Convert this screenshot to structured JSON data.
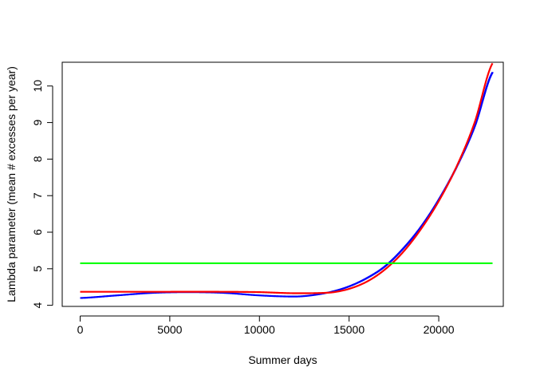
{
  "chart_data": {
    "type": "line",
    "title": "",
    "xlabel": "Summer days",
    "ylabel": "Lambda parameter (mean # excesses per year)",
    "xlim": [
      -1000,
      23600
    ],
    "ylim": [
      3.97,
      10.65
    ],
    "xticks": [
      0,
      5000,
      10000,
      15000,
      20000
    ],
    "xtick_labels": [
      "0",
      "5000",
      "10000",
      "15000",
      "20000"
    ],
    "yticks": [
      4,
      5,
      6,
      7,
      8,
      9,
      10
    ],
    "ytick_labels": [
      "4",
      "5",
      "6",
      "7",
      "8",
      "9",
      "10"
    ],
    "grid": false,
    "legend": "none",
    "series": [
      {
        "color": "#0000ff",
        "step": true,
        "x": [
          0,
          2000,
          4000,
          6000,
          8000,
          10000,
          12000,
          13000,
          14000,
          15000,
          16000,
          17000,
          18000,
          19000,
          20000,
          21000,
          22000,
          23000
        ],
        "y": [
          4.2,
          4.27,
          4.34,
          4.36,
          4.34,
          4.27,
          4.24,
          4.28,
          4.37,
          4.52,
          4.75,
          5.07,
          5.55,
          6.15,
          6.9,
          7.8,
          8.9,
          10.38
        ]
      },
      {
        "color": "#ff0000",
        "step": false,
        "x": [
          0,
          4000,
          8000,
          10000,
          12000,
          14000,
          15000,
          16000,
          17000,
          18000,
          19000,
          20000,
          21000,
          22000,
          23000
        ],
        "y": [
          4.37,
          4.37,
          4.37,
          4.36,
          4.33,
          4.35,
          4.45,
          4.65,
          4.98,
          5.45,
          6.08,
          6.85,
          7.8,
          9.0,
          10.62
        ]
      },
      {
        "color": "#00ff00",
        "step": false,
        "x": [
          0,
          23000
        ],
        "y": [
          5.15,
          5.15
        ]
      }
    ]
  }
}
